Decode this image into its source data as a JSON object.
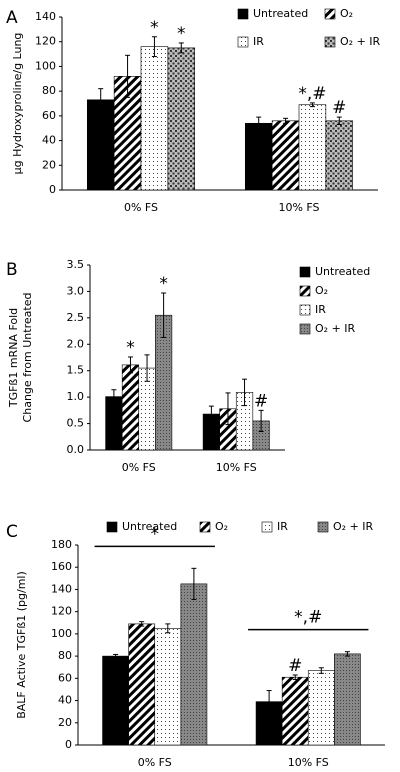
{
  "chart_data": [
    {
      "type": "bar",
      "panel_label": "A",
      "ylabel": [
        "µg Hydroxyproline/g Lung"
      ],
      "legend": "top-grid",
      "categories": [
        "0% FS",
        "10% FS"
      ],
      "ylim": [
        0,
        140
      ],
      "yticks": [
        0,
        20,
        40,
        60,
        80,
        100,
        120,
        140
      ],
      "series": [
        {
          "name": "Untreated",
          "color": "#000000",
          "pattern": "solid",
          "values": [
            73,
            54
          ],
          "errors": [
            9,
            5
          ],
          "annotations": [
            null,
            null
          ]
        },
        {
          "name": "O₂",
          "color": "#000000",
          "pattern": "hatch",
          "values": [
            92,
            56
          ],
          "errors": [
            17,
            2
          ],
          "annotations": [
            null,
            null
          ]
        },
        {
          "name": "IR",
          "color": "#000000",
          "pattern": "dots",
          "values": [
            116,
            69
          ],
          "errors": [
            8,
            1.5
          ],
          "annotations": [
            "*",
            "*,#"
          ]
        },
        {
          "name": "O₂ + IR",
          "color": "#000000",
          "pattern": "crosshatch",
          "values": [
            115,
            56
          ],
          "errors": [
            4,
            3
          ],
          "annotations": [
            "*",
            "#"
          ]
        }
      ]
    },
    {
      "type": "bar",
      "panel_label": "B",
      "ylabel": [
        "TGFß1 mRNA Fold",
        "Change from Untreated"
      ],
      "legend": "right",
      "categories": [
        "0% FS",
        "10% FS"
      ],
      "ylim": [
        0,
        3.5
      ],
      "yticks": [
        {
          "value": 0,
          "label": "0.0"
        },
        0.5,
        {
          "value": 1,
          "label": "1.0"
        },
        1.5,
        {
          "value": 2,
          "label": "2.0"
        },
        2.5,
        {
          "value": 3,
          "label": "3.0"
        },
        3.5
      ],
      "series": [
        {
          "name": "Untreated",
          "color": "#000000",
          "pattern": "solid",
          "values": [
            1.01,
            0.68
          ],
          "errors": [
            0.13,
            0.15
          ],
          "annotations": [
            null,
            null
          ]
        },
        {
          "name": "O₂",
          "color": "#000000",
          "pattern": "hatch",
          "values": [
            1.61,
            0.78
          ],
          "errors": [
            0.15,
            0.3
          ],
          "annotations": [
            "*",
            null
          ]
        },
        {
          "name": "IR",
          "color": "#000000",
          "pattern": "dots",
          "values": [
            1.55,
            1.09
          ],
          "errors": [
            0.25,
            0.25
          ],
          "annotations": [
            null,
            null
          ]
        },
        {
          "name": "O₂ + IR",
          "color": "#808080",
          "pattern": "densedots",
          "values": [
            2.55,
            0.55
          ],
          "errors": [
            0.42,
            0.2
          ],
          "annotations": [
            "*",
            "#"
          ]
        }
      ]
    },
    {
      "type": "bar",
      "panel_label": "C",
      "ylabel": [
        "BALF Active TGFß1 (pg/ml)"
      ],
      "legend": "top",
      "categories": [
        "0% FS",
        "10% FS"
      ],
      "ylim": [
        0,
        180
      ],
      "yticks": [
        0,
        20,
        40,
        60,
        80,
        100,
        120,
        140,
        160,
        180
      ],
      "group_annotations": [
        "*",
        "*,#"
      ],
      "series": [
        {
          "name": "Untreated",
          "color": "#000000",
          "pattern": "solid",
          "values": [
            80,
            39
          ],
          "errors": [
            1.5,
            10
          ],
          "annotations": [
            null,
            null
          ]
        },
        {
          "name": "O₂",
          "color": "#000000",
          "pattern": "hatch",
          "values": [
            109,
            61
          ],
          "errors": [
            2,
            2
          ],
          "annotations": [
            null,
            "#"
          ]
        },
        {
          "name": "IR",
          "color": "#000000",
          "pattern": "dots",
          "values": [
            105,
            67
          ],
          "errors": [
            4,
            2.5
          ],
          "annotations": [
            null,
            null
          ]
        },
        {
          "name": "O₂ + IR",
          "color": "#808080",
          "pattern": "densedots",
          "values": [
            145,
            82
          ],
          "errors": [
            14,
            2
          ],
          "annotations": [
            null,
            null
          ]
        }
      ]
    }
  ]
}
